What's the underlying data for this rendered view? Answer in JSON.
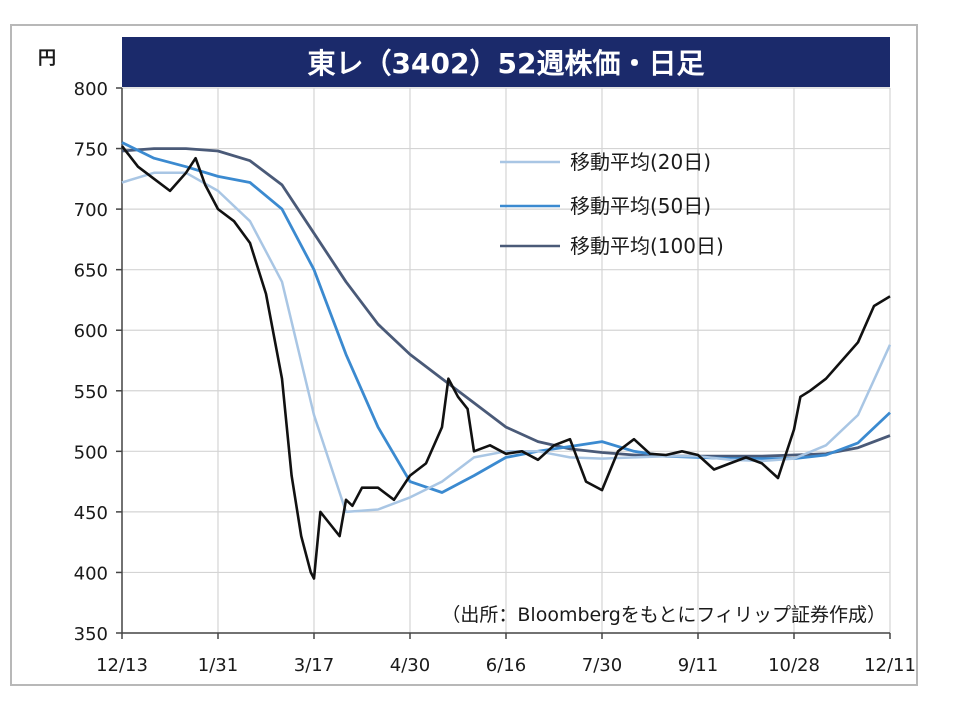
{
  "colors": {
    "title_bg": "#1b2a6b",
    "grid": "#d4d4d4",
    "price": "#111111",
    "ma20": "#a9c6e4",
    "ma50": "#3b8ad0",
    "ma100": "#4a5a78"
  },
  "chart_data": {
    "type": "line",
    "title": "東レ（3402）52週株価・日足",
    "ylabel": "円",
    "ylim": [
      350,
      800
    ],
    "yticks": [
      350,
      400,
      450,
      500,
      550,
      600,
      650,
      700,
      750,
      800
    ],
    "xlim": [
      0,
      24
    ],
    "xticks": [
      {
        "label": "12/13",
        "x": 0
      },
      {
        "label": "1/31",
        "x": 3
      },
      {
        "label": "3/17",
        "x": 6
      },
      {
        "label": "4/30",
        "x": 9
      },
      {
        "label": "6/16",
        "x": 12
      },
      {
        "label": "7/30",
        "x": 15
      },
      {
        "label": "9/11",
        "x": 18
      },
      {
        "label": "10/28",
        "x": 21
      },
      {
        "label": "12/11",
        "x": 24
      }
    ],
    "grid": true,
    "legend_position": "top-right",
    "annotation": "（出所：Bloombergをもとにフィリップ証券作成）",
    "series": [
      {
        "name": "",
        "role": "price",
        "x": [
          0,
          0.5,
          1,
          1.5,
          2,
          2.3,
          2.6,
          3,
          3.5,
          4,
          4.5,
          5,
          5.3,
          5.6,
          5.9,
          6,
          6.2,
          6.5,
          6.8,
          7,
          7.2,
          7.5,
          8,
          8.5,
          9,
          9.5,
          10,
          10.2,
          10.5,
          10.8,
          11,
          11.5,
          12,
          12.5,
          13,
          13.5,
          14,
          14.5,
          15,
          15.5,
          16,
          16.5,
          17,
          17.5,
          18,
          18.5,
          19,
          19.5,
          20,
          20.5,
          21,
          21.2,
          21.5,
          22,
          22.5,
          23,
          23.5,
          24
        ],
        "values": [
          752,
          735,
          725,
          715,
          730,
          742,
          720,
          700,
          690,
          672,
          630,
          560,
          480,
          430,
          400,
          395,
          450,
          440,
          430,
          460,
          455,
          470,
          470,
          460,
          480,
          490,
          520,
          560,
          545,
          535,
          500,
          505,
          498,
          500,
          493,
          505,
          510,
          475,
          468,
          500,
          510,
          498,
          497,
          500,
          497,
          485,
          490,
          495,
          490,
          478,
          518,
          545,
          550,
          560,
          575,
          590,
          620,
          628
        ]
      },
      {
        "name": "移動平均(20日)",
        "role": "ma20",
        "x": [
          0,
          1,
          2,
          3,
          4,
          5,
          6,
          7,
          8,
          9,
          10,
          11,
          12,
          13,
          14,
          15,
          16,
          17,
          18,
          19,
          20,
          21,
          22,
          23,
          24
        ],
        "values": [
          722,
          730,
          730,
          715,
          690,
          640,
          530,
          450,
          452,
          462,
          475,
          495,
          500,
          500,
          495,
          494,
          495,
          496,
          496,
          493,
          492,
          494,
          505,
          530,
          588
        ]
      },
      {
        "name": "移動平均(50日)",
        "role": "ma50",
        "x": [
          0,
          1,
          2,
          3,
          4,
          5,
          6,
          7,
          8,
          9,
          10,
          11,
          12,
          13,
          14,
          15,
          16,
          17,
          18,
          19,
          20,
          21,
          22,
          23,
          24
        ],
        "values": [
          755,
          742,
          735,
          727,
          722,
          700,
          650,
          580,
          520,
          475,
          466,
          480,
          495,
          500,
          504,
          508,
          500,
          496,
          495,
          494,
          494,
          494,
          497,
          507,
          532
        ]
      },
      {
        "name": "移動平均(100日)",
        "role": "ma100",
        "x": [
          0,
          1,
          2,
          3,
          4,
          5,
          6,
          7,
          8,
          9,
          10,
          11,
          12,
          13,
          14,
          15,
          16,
          17,
          18,
          19,
          20,
          21,
          22,
          23,
          24
        ],
        "values": [
          748,
          750,
          750,
          748,
          740,
          720,
          680,
          640,
          605,
          580,
          560,
          540,
          520,
          508,
          502,
          499,
          497,
          496,
          496,
          496,
          496,
          497,
          498,
          503,
          513
        ]
      }
    ]
  }
}
